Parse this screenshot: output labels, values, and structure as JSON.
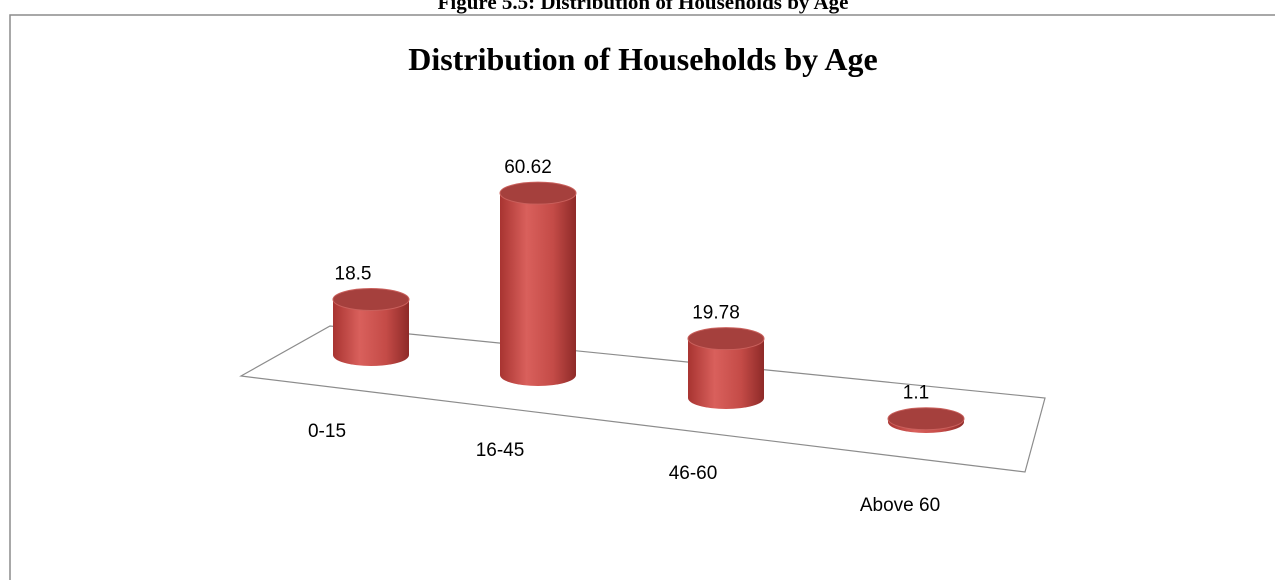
{
  "caption": "Figure 5.5: Distribution of Households by Age",
  "chart_data": {
    "type": "bar3d",
    "title": "Distribution of Households by Age",
    "categories": [
      "0-15",
      "16-45",
      "46-60",
      "Above 60"
    ],
    "values": [
      18.5,
      60.62,
      19.78,
      1.1
    ],
    "color": "#c0504d"
  }
}
